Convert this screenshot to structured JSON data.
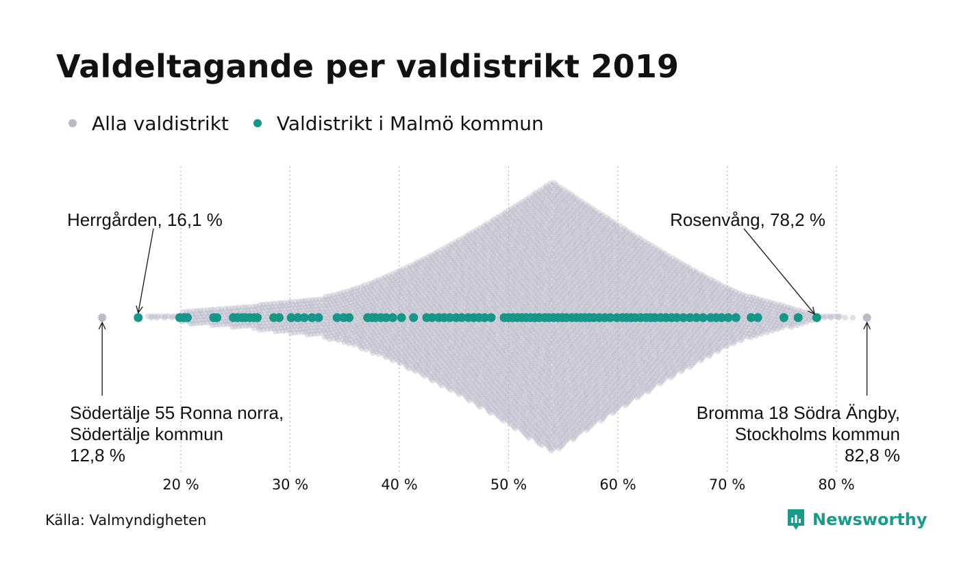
{
  "title": "Valdeltagande per valdistrikt 2019",
  "legend": {
    "all": {
      "label": "Alla valdistrikt",
      "color": "#bbbac9"
    },
    "malmo": {
      "label": "Valdistrikt i Malmö kommun",
      "color": "#169688"
    }
  },
  "source": "Källa: Valmyndigheten",
  "brand": {
    "name": "Newsworthy",
    "icon": "newsworthy-logo-icon"
  },
  "chart_data": {
    "type": "scatter",
    "subtype": "beeswarm",
    "xlim": [
      12,
      84
    ],
    "x_ticks": [
      20,
      30,
      40,
      50,
      60,
      70,
      80
    ],
    "tick_labels": [
      "20 %",
      "30 %",
      "40 %",
      "50 %",
      "60 %",
      "70 %",
      "80 %"
    ],
    "grid": "vertical dotted",
    "legend_position": "top-left",
    "series": [
      {
        "name": "Alla valdistrikt",
        "color": "#bbbac9",
        "distribution_peak": 54,
        "range": [
          12.8,
          82.8
        ]
      },
      {
        "name": "Valdistrikt i Malmö kommun",
        "color": "#169688",
        "values": [
          16.1,
          19.9,
          20.3,
          20.6,
          23.0,
          23.3,
          24.8,
          25.2,
          25.6,
          25.9,
          26.3,
          26.7,
          27.0,
          28.5,
          29.0,
          30.1,
          30.7,
          31.3,
          32.0,
          32.6,
          34.3,
          34.9,
          35.4,
          37.1,
          37.5,
          37.8,
          38.3,
          38.8,
          39.4,
          40.2,
          41.3,
          42.5,
          43.0,
          43.6,
          44.1,
          44.6,
          45.2,
          45.7,
          46.3,
          46.8,
          47.3,
          47.8,
          48.4,
          49.6,
          50.0,
          50.4,
          50.8,
          51.2,
          51.6,
          52.0,
          52.4,
          52.8,
          53.3,
          53.7,
          54.1,
          54.5,
          54.9,
          55.3,
          55.8,
          56.2,
          56.6,
          57.0,
          57.4,
          57.8,
          58.3,
          58.8,
          59.3,
          59.9,
          60.4,
          60.8,
          61.2,
          61.6,
          62.1,
          62.6,
          63.0,
          63.4,
          63.9,
          64.4,
          64.9,
          65.4,
          66.0,
          66.6,
          67.2,
          67.8,
          68.5,
          69.0,
          69.5,
          70.1,
          70.8,
          72.2,
          72.8,
          75.2,
          76.5,
          78.2
        ]
      }
    ],
    "annotations": [
      {
        "text": "Herrgården, 16,1 %",
        "x": 16.1
      },
      {
        "text": "Rosenvång, 78,2 %",
        "x": 78.2
      },
      {
        "lines": [
          "Södertälje 55 Ronna norra,",
          "Södertälje kommun",
          "12,8 %"
        ],
        "x": 12.8
      },
      {
        "lines": [
          "Bromma 18 Södra Ängby,",
          "Stockholms kommun",
          "82,8 %"
        ],
        "x": 82.8
      }
    ]
  }
}
